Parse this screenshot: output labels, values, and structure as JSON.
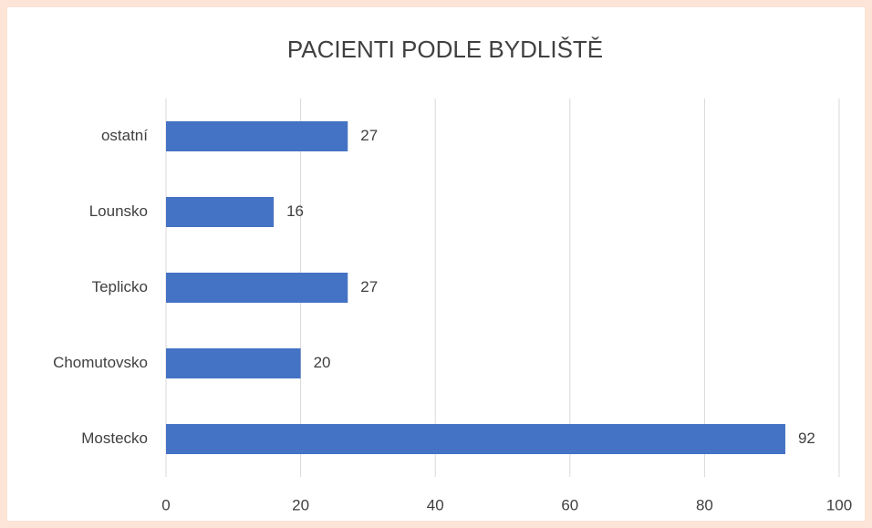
{
  "chart_data": {
    "type": "bar",
    "orientation": "horizontal",
    "title": "PACIENTI PODLE BYDLIŠTĚ",
    "categories": [
      "Mostecko",
      "Chomutovsko",
      "Teplicko",
      "Lounsko",
      "ostatní"
    ],
    "values": [
      92,
      20,
      27,
      16,
      27
    ],
    "color": "#4472c4",
    "xlim": [
      0,
      100
    ],
    "xticks": [
      0,
      20,
      40,
      60,
      80,
      100
    ],
    "grid": true
  }
}
